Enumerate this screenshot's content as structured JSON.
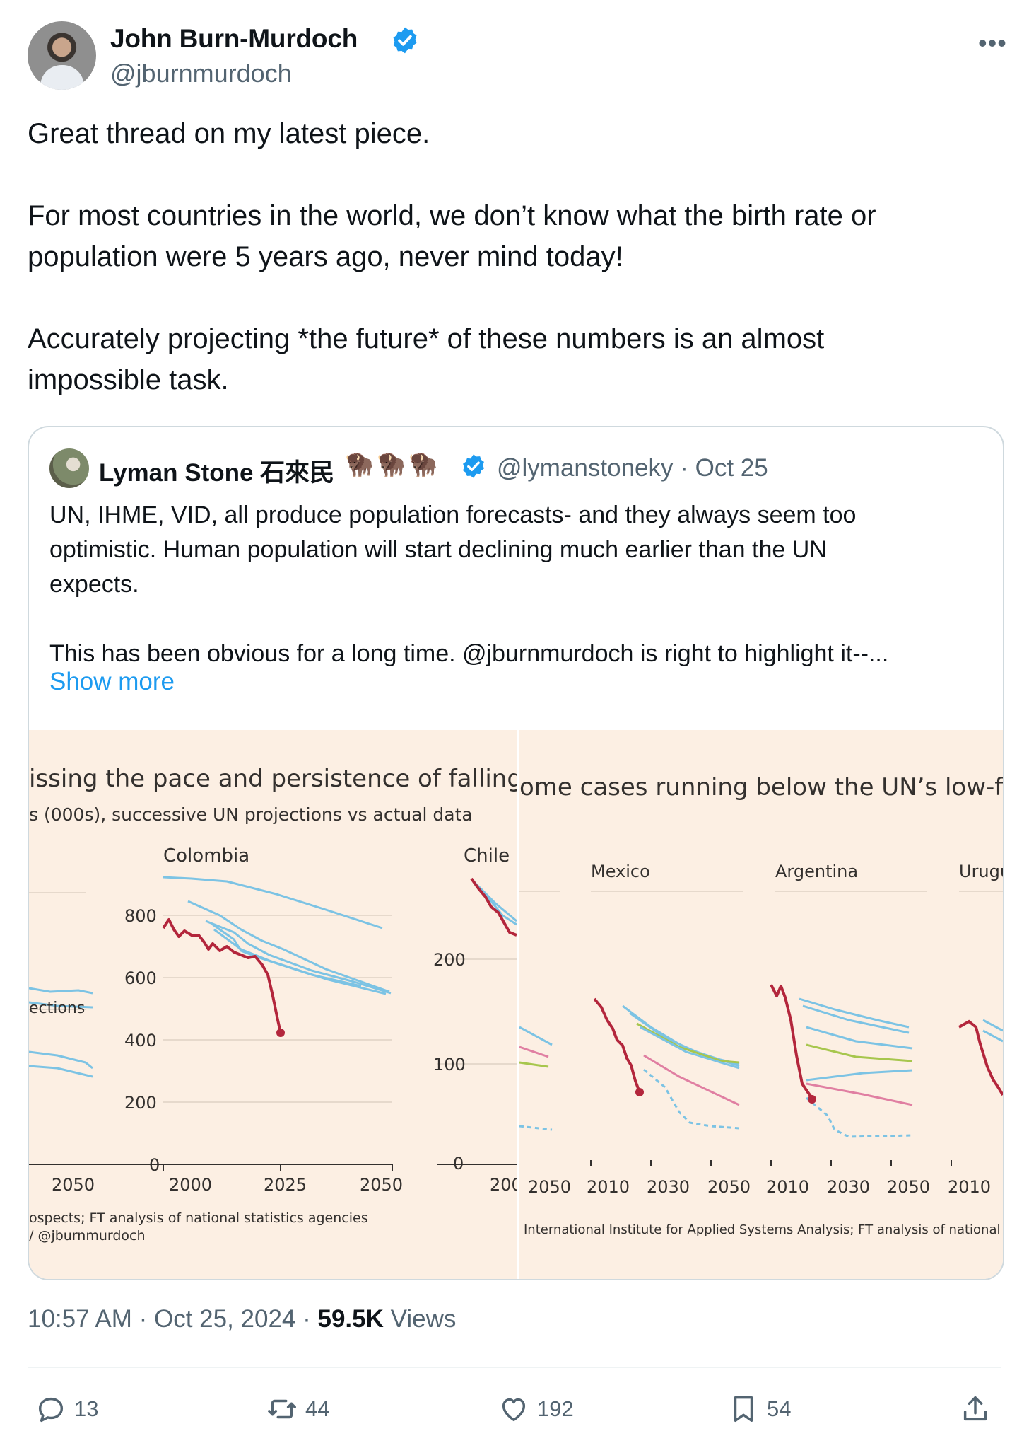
{
  "author": {
    "display_name": "John Burn-Murdoch",
    "handle": "@jburnmurdoch"
  },
  "tweet": {
    "paragraphs": [
      "Great thread on my latest piece.",
      "For most countries in the world, we don’t know what the birth rate or",
      "population were 5 years ago, never mind today!",
      "Accurately projecting *the future* of these numbers is an almost",
      "impossible task."
    ]
  },
  "quote": {
    "display_name": "Lyman Stone 石來民",
    "emoji": "🦬🦬🦬",
    "handle_date": "@lymanstoneky · Oct 25",
    "lines": [
      "UN, IHME, VID, all produce population forecasts- and they always seem too",
      "optimistic. Human population will start declining much earlier than the UN",
      "expects.",
      "This has been obvious for a long time. @jburnmurdoch is right to highlight it--..."
    ],
    "show_more": "Show more"
  },
  "image_left": {
    "title": "issing the pace and persistence of falling b",
    "subtitle": "s (000s), successive UN projections vs actual data",
    "legend_fragment": "ections",
    "panel1": "Colombia",
    "panel2": "Chile",
    "y_ticks": [
      "800",
      "600",
      "400",
      "200",
      "0"
    ],
    "y_ticks_chile": [
      "200",
      "100",
      "0"
    ],
    "x_ticks": [
      "2050",
      "2000",
      "2025",
      "2050",
      "200"
    ],
    "source1": "ospects; FT analysis of national statistics agencies",
    "source2": "/ @jburnmurdoch"
  },
  "image_right": {
    "title": "ome cases running below the UN’s low-fertilit",
    "panels": [
      "Mexico",
      "Argentina",
      "Urugu"
    ],
    "x_ticks": [
      "2050",
      "2010",
      "2030",
      "2050",
      "2010",
      "2030",
      "2050",
      "2010"
    ],
    "source": "International Institute for Applied Systems Analysis; FT analysis of national statisti"
  },
  "meta": {
    "time": "10:57 AM · Oct 25, 2024 · ",
    "views_count": "59.5K",
    "views_label": " Views"
  },
  "actions": {
    "replies": "13",
    "reposts": "44",
    "likes": "192",
    "bookmarks": "54"
  },
  "colors": {
    "accent": "#1d9bf0",
    "ft_background": "#fcefe3",
    "actual_line": "#b3263c",
    "projection_line": "#7cc3e4"
  }
}
